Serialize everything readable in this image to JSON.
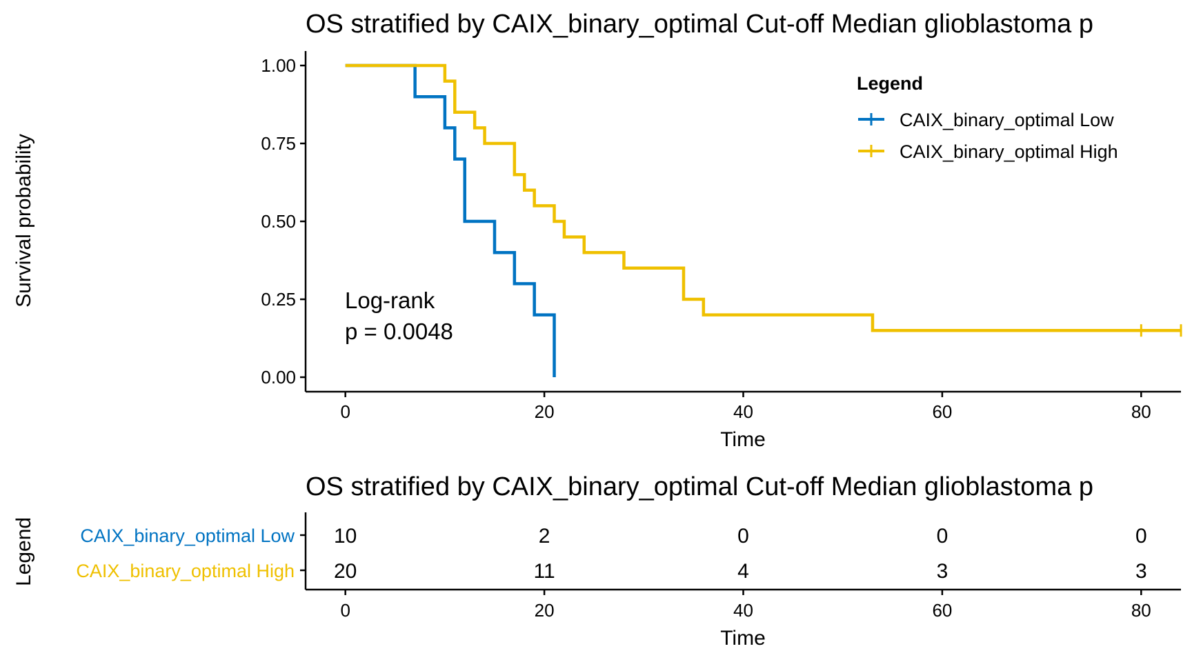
{
  "colors": {
    "low": "#0073C2",
    "high": "#EFC000",
    "axis": "#000000"
  },
  "chart_data": [
    {
      "type": "line",
      "subtype": "kaplan-meier step",
      "title": "OS stratified by CAIX_binary_optimal Cut-off Median glioblastoma p",
      "xlabel": "Time",
      "ylabel": "Survival probability",
      "xlim": [
        -4,
        84
      ],
      "ylim": [
        0,
        1
      ],
      "xticks": [
        "0",
        "20",
        "40",
        "60",
        "80"
      ],
      "yticks": [
        "0.00",
        "0.25",
        "0.50",
        "0.75",
        "1.00"
      ],
      "legend": {
        "title": "Legend",
        "position": "top-right",
        "entries": [
          "CAIX_binary_optimal Low",
          "CAIX_binary_optimal High"
        ]
      },
      "annotation": [
        "Log-rank",
        "p = 0.0048"
      ],
      "series": [
        {
          "name": "CAIX_binary_optimal Low",
          "color_key": "low",
          "steps": [
            [
              0,
              1.0
            ],
            [
              7,
              0.9
            ],
            [
              10,
              0.8
            ],
            [
              11,
              0.7
            ],
            [
              12,
              0.5
            ],
            [
              15,
              0.4
            ],
            [
              17,
              0.3
            ],
            [
              19,
              0.2
            ],
            [
              21,
              0.0
            ]
          ],
          "end_time": 21,
          "censored": []
        },
        {
          "name": "CAIX_binary_optimal High",
          "color_key": "high",
          "steps": [
            [
              0,
              1.0
            ],
            [
              10,
              0.95
            ],
            [
              11,
              0.85
            ],
            [
              13,
              0.8
            ],
            [
              14,
              0.75
            ],
            [
              17,
              0.65
            ],
            [
              18,
              0.6
            ],
            [
              19,
              0.55
            ],
            [
              21,
              0.5
            ],
            [
              22,
              0.45
            ],
            [
              24,
              0.4
            ],
            [
              28,
              0.35
            ],
            [
              34,
              0.25
            ],
            [
              36,
              0.2
            ],
            [
              53,
              0.15
            ]
          ],
          "end_time": 84,
          "censored": [
            [
              80,
              0.15
            ],
            [
              84,
              0.15
            ]
          ]
        }
      ]
    },
    {
      "type": "table",
      "title": "OS stratified by CAIX_binary_optimal Cut-off Median glioblastoma p",
      "xlabel": "Time",
      "ylabel": "Legend",
      "xlim": [
        -4,
        84
      ],
      "times": [
        0,
        20,
        40,
        60,
        80
      ],
      "xticks": [
        "0",
        "20",
        "40",
        "60",
        "80"
      ],
      "rows": [
        {
          "name": "CAIX_binary_optimal Low",
          "color_key": "low",
          "values": [
            "10",
            "2",
            "0",
            "0",
            "0"
          ]
        },
        {
          "name": "CAIX_binary_optimal High",
          "color_key": "high",
          "values": [
            "20",
            "11",
            "4",
            "3",
            "3"
          ]
        }
      ]
    }
  ]
}
